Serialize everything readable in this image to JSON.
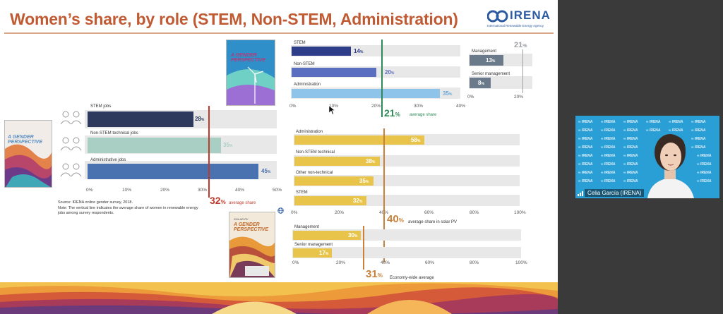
{
  "slide": {
    "title": "Women’s share, by role (STEM, Non-STEM, Administration)",
    "logo_text": "IRENA",
    "logo_sub": "International Renewable Energy Agency"
  },
  "covers": {
    "left_title": "A GENDER PERSPECTIVE",
    "wind_title": "A GENDER PERSPECTIVE",
    "solar_title": "A GENDER PERSPECTIVE",
    "solar_kicker": "SOLAR PV"
  },
  "left_chart": {
    "rows": [
      {
        "label": "STEM jobs",
        "value": "28",
        "unit": "%"
      },
      {
        "label": "Non-STEM technical jobs",
        "value": "35",
        "unit": "%"
      },
      {
        "label": "Administrative jobs",
        "value": "45",
        "unit": "%"
      }
    ],
    "ticks": [
      "0%",
      "10%",
      "20%",
      "30%",
      "40%",
      "50%"
    ],
    "avg_value": "32",
    "avg_unit": "%",
    "avg_label": "average share",
    "source": "Source: IRENA online gender survey, 2018.",
    "note": "Note: The vertical line indicates the average share of women in renewable energy jobs among survey respondents."
  },
  "wind_chart": {
    "rows": [
      {
        "label": "STEM",
        "value": "14",
        "unit": "%"
      },
      {
        "label": "Non-STEM",
        "value": "20",
        "unit": "%"
      },
      {
        "label": "Administration",
        "value": "35",
        "unit": "%"
      }
    ],
    "ticks": [
      "0%",
      "10%",
      "20%",
      "30%",
      "40%"
    ],
    "avg_value": "21",
    "avg_unit": "%",
    "avg_label": "average share"
  },
  "wind_mgmt": {
    "rows": [
      {
        "label": "Management",
        "value": "13",
        "unit": "%"
      },
      {
        "label": "Senior management",
        "value": "8",
        "unit": "%"
      }
    ],
    "ticks": [
      "0%",
      "20%"
    ],
    "avg_value": "21",
    "avg_unit": "%"
  },
  "solar_chart": {
    "rows": [
      {
        "label": "Administration",
        "value": "58",
        "unit": "%"
      },
      {
        "label": "Non-STEM technical",
        "value": "38",
        "unit": "%"
      },
      {
        "label": "Other non-technical",
        "value": "35",
        "unit": "%"
      },
      {
        "label": "STEM",
        "value": "32",
        "unit": "%"
      }
    ],
    "ticks": [
      "0%",
      "20%",
      "40%",
      "60%",
      "80%",
      "100%"
    ],
    "avg_value": "40",
    "avg_unit": "%",
    "avg_label": "average share in solar PV"
  },
  "solar_mgmt": {
    "rows": [
      {
        "label": "Management",
        "value": "30",
        "unit": "%"
      },
      {
        "label": "Senior management",
        "value": "17",
        "unit": "%"
      }
    ],
    "ticks": [
      "0%",
      "20%",
      "40%",
      "60%",
      "80%",
      "100%"
    ],
    "avg_value": "31",
    "avg_unit": "%",
    "avg_label": "Economy-wide average"
  },
  "video": {
    "participant_name": "Celia García (IRENA)",
    "tile_text": "IRENA"
  },
  "colors": {
    "title": "#c05a32",
    "stem_dark": "#2d3a5e",
    "nonstem_green": "#a9cfc4",
    "admin_blue": "#4a72b0",
    "wind_dark": "#2e3d8a",
    "wind_mid": "#5b6fc0",
    "wind_light": "#8fc4ea",
    "mgmt_gray": "#6b7a8a",
    "solar_yellow": "#e8c54a",
    "avg_red": "#c0392b",
    "avg_green": "#2e8b57",
    "avg_orange": "#c8803a",
    "video_bg": "#2a9fd6"
  }
}
